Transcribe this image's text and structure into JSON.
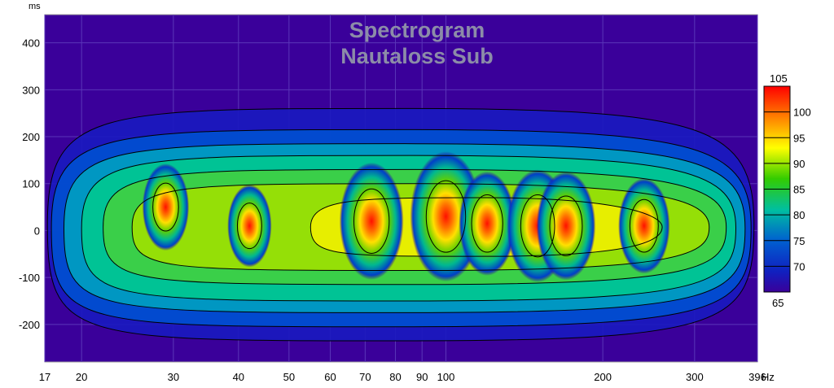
{
  "chart_data": {
    "type": "heatmap",
    "title": "Spectrogram",
    "subtitle": "Nautaloss Sub",
    "y_unit": "ms",
    "x_unit": "Hz",
    "x_scale": "log",
    "xlim": [
      17,
      396
    ],
    "ylim": [
      -280,
      460
    ],
    "x_ticks": [
      {
        "value": 17,
        "label": "17"
      },
      {
        "value": 20,
        "label": "20"
      },
      {
        "value": 30,
        "label": "30"
      },
      {
        "value": 40,
        "label": "40"
      },
      {
        "value": 50,
        "label": "50"
      },
      {
        "value": 60,
        "label": "60"
      },
      {
        "value": 70,
        "label": "70"
      },
      {
        "value": 80,
        "label": "80"
      },
      {
        "value": 90,
        "label": "90"
      },
      {
        "value": 100,
        "label": "100"
      },
      {
        "value": 200,
        "label": "200"
      },
      {
        "value": 300,
        "label": "300"
      },
      {
        "value": 396,
        "label": "396"
      }
    ],
    "y_ticks": [
      {
        "value": 400,
        "label": "400"
      },
      {
        "value": 300,
        "label": "300"
      },
      {
        "value": 200,
        "label": "200"
      },
      {
        "value": 100,
        "label": "100"
      },
      {
        "value": 0,
        "label": "0"
      },
      {
        "value": -100,
        "label": "-100"
      },
      {
        "value": -200,
        "label": "-200"
      }
    ],
    "colorbar": {
      "min": 65,
      "max": 105,
      "min_label": "65",
      "max_label": "105",
      "ticks": [
        {
          "value": 100,
          "label": "100"
        },
        {
          "value": 95,
          "label": "95"
        },
        {
          "value": 90,
          "label": "90"
        },
        {
          "value": 85,
          "label": "85"
        },
        {
          "value": 80,
          "label": "80"
        },
        {
          "value": 75,
          "label": "75"
        },
        {
          "value": 70,
          "label": "70"
        }
      ]
    },
    "contour_levels_db": [
      70,
      75,
      80,
      85,
      90,
      95,
      100
    ],
    "peaks": [
      {
        "freq_hz": 29,
        "time_ms": 50,
        "level_db": 95
      },
      {
        "freq_hz": 42,
        "time_ms": 10,
        "level_db": 94
      },
      {
        "freq_hz": 72,
        "time_ms": 20,
        "level_db": 102
      },
      {
        "freq_hz": 100,
        "time_ms": 30,
        "level_db": 105
      },
      {
        "freq_hz": 120,
        "time_ms": 15,
        "level_db": 99
      },
      {
        "freq_hz": 150,
        "time_ms": 10,
        "level_db": 101
      },
      {
        "freq_hz": 170,
        "time_ms": 10,
        "level_db": 100
      },
      {
        "freq_hz": 240,
        "time_ms": 10,
        "level_db": 97
      }
    ]
  }
}
